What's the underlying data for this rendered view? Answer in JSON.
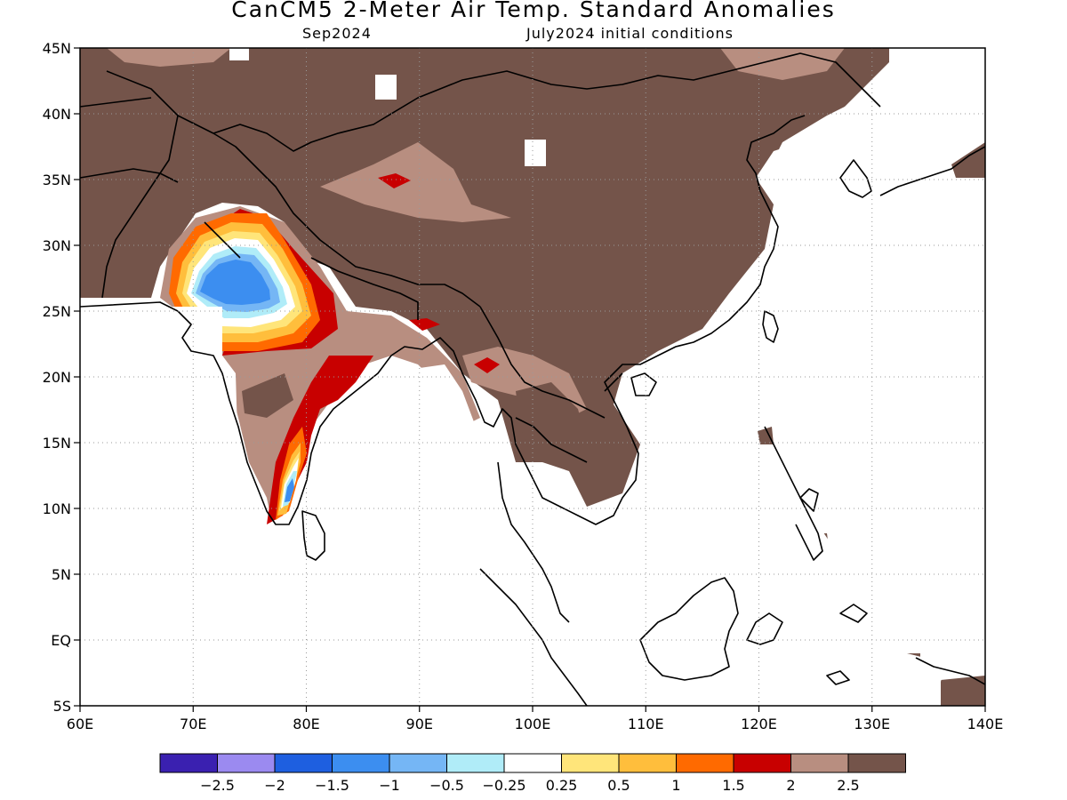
{
  "title": "CanCM5 2-Meter Air Temp. Standard Anomalies",
  "subtitle_left": "Sep2024",
  "subtitle_right": "July2024 initial conditions",
  "map": {
    "lon_range": [
      60,
      140
    ],
    "lat_range": [
      -5,
      45
    ],
    "grid": true,
    "x_ticks": [
      "60E",
      "70E",
      "80E",
      "90E",
      "100E",
      "110E",
      "120E",
      "130E",
      "140E"
    ],
    "y_ticks": [
      "45N",
      "40N",
      "35N",
      "30N",
      "25N",
      "20N",
      "15N",
      "10N",
      "5N",
      "EQ",
      "5S"
    ]
  },
  "colorbar": {
    "colors": [
      "#3a20b0",
      "#9b8af0",
      "#1e5fe0",
      "#3c8ef0",
      "#75b6f5",
      "#b0ecf8",
      "#ffffff",
      "#ffe57a",
      "#ffbe3c",
      "#ff6a00",
      "#c80000",
      "#b88e80",
      "#74544a"
    ],
    "labels": [
      "−2.5",
      "−2",
      "−1.5",
      "−1",
      "−0.5",
      "−0.25",
      "0.25",
      "0.5",
      "1",
      "1.5",
      "2",
      "2.5"
    ]
  }
}
